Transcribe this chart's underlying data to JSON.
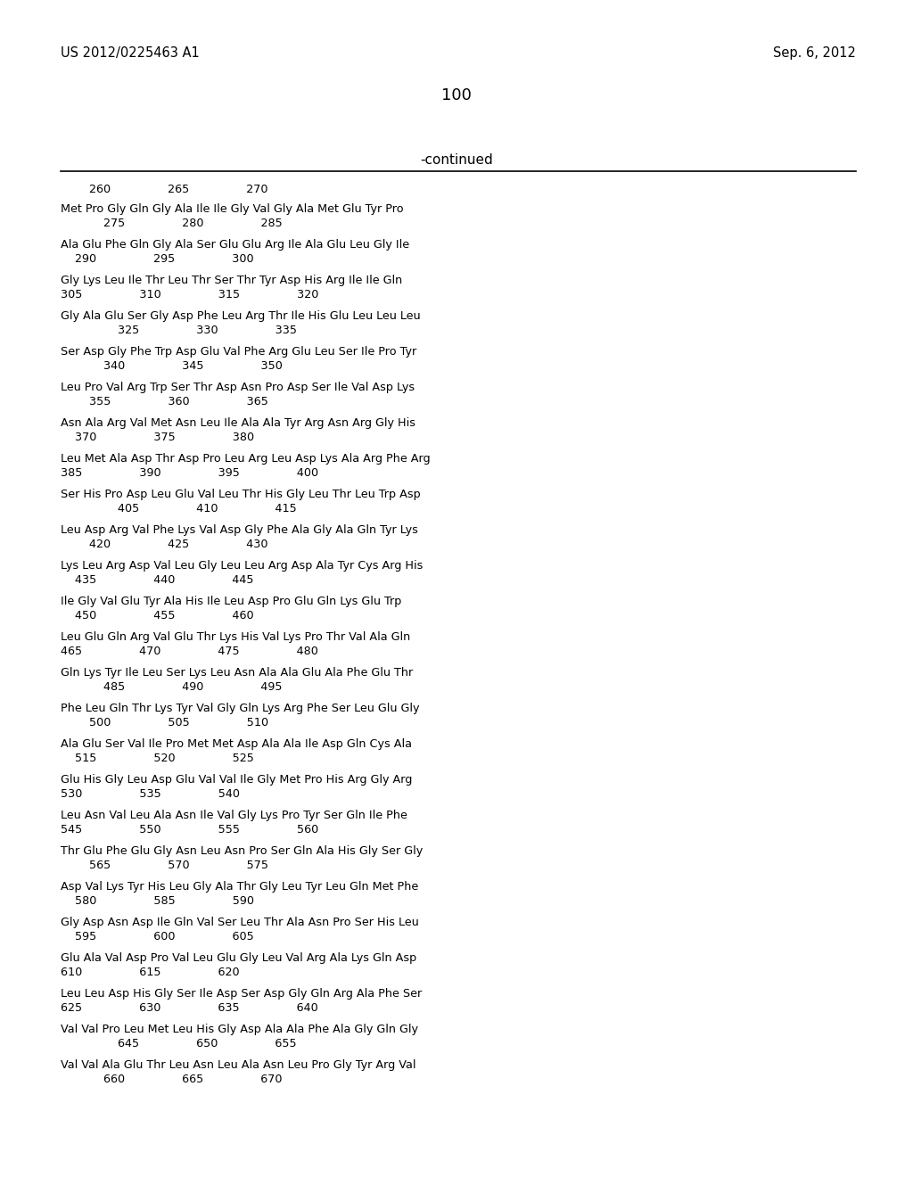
{
  "header_left": "US 2012/0225463 A1",
  "header_right": "Sep. 6, 2012",
  "page_number": "100",
  "continued_label": "-continued",
  "number_line": "        260                265                270",
  "sequence_blocks": [
    [
      "Met Pro Gly Gln Gly Ala Ile Ile Gly Val Gly Ala Met Glu Tyr Pro",
      "            275                280                285"
    ],
    [
      "Ala Glu Phe Gln Gly Ala Ser Glu Glu Arg Ile Ala Glu Leu Gly Ile",
      "    290                295                300"
    ],
    [
      "Gly Lys Leu Ile Thr Leu Thr Ser Thr Tyr Asp His Arg Ile Ile Gln",
      "305                310                315                320"
    ],
    [
      "Gly Ala Glu Ser Gly Asp Phe Leu Arg Thr Ile His Glu Leu Leu Leu",
      "                325                330                335"
    ],
    [
      "Ser Asp Gly Phe Trp Asp Glu Val Phe Arg Glu Leu Ser Ile Pro Tyr",
      "            340                345                350"
    ],
    [
      "Leu Pro Val Arg Trp Ser Thr Asp Asn Pro Asp Ser Ile Val Asp Lys",
      "        355                360                365"
    ],
    [
      "Asn Ala Arg Val Met Asn Leu Ile Ala Ala Tyr Arg Asn Arg Gly His",
      "    370                375                380"
    ],
    [
      "Leu Met Ala Asp Thr Asp Pro Leu Arg Leu Asp Lys Ala Arg Phe Arg",
      "385                390                395                400"
    ],
    [
      "Ser His Pro Asp Leu Glu Val Leu Thr His Gly Leu Thr Leu Trp Asp",
      "                405                410                415"
    ],
    [
      "Leu Asp Arg Val Phe Lys Val Asp Gly Phe Ala Gly Ala Gln Tyr Lys",
      "        420                425                430"
    ],
    [
      "Lys Leu Arg Asp Val Leu Gly Leu Leu Arg Asp Ala Tyr Cys Arg His",
      "    435                440                445"
    ],
    [
      "Ile Gly Val Glu Tyr Ala His Ile Leu Asp Pro Glu Gln Lys Glu Trp",
      "    450                455                460"
    ],
    [
      "Leu Glu Gln Arg Val Glu Thr Lys His Val Lys Pro Thr Val Ala Gln",
      "465                470                475                480"
    ],
    [
      "Gln Lys Tyr Ile Leu Ser Lys Leu Asn Ala Ala Glu Ala Phe Glu Thr",
      "            485                490                495"
    ],
    [
      "Phe Leu Gln Thr Lys Tyr Val Gly Gln Lys Arg Phe Ser Leu Glu Gly",
      "        500                505                510"
    ],
    [
      "Ala Glu Ser Val Ile Pro Met Met Asp Ala Ala Ile Asp Gln Cys Ala",
      "    515                520                525"
    ],
    [
      "Glu His Gly Leu Asp Glu Val Val Ile Gly Met Pro His Arg Gly Arg",
      "530                535                540"
    ],
    [
      "Leu Asn Val Leu Ala Asn Ile Val Gly Lys Pro Tyr Ser Gln Ile Phe",
      "545                550                555                560"
    ],
    [
      "Thr Glu Phe Glu Gly Asn Leu Asn Pro Ser Gln Ala His Gly Ser Gly",
      "        565                570                575"
    ],
    [
      "Asp Val Lys Tyr His Leu Gly Ala Thr Gly Leu Tyr Leu Gln Met Phe",
      "    580                585                590"
    ],
    [
      "Gly Asp Asn Asp Ile Gln Val Ser Leu Thr Ala Asn Pro Ser His Leu",
      "    595                600                605"
    ],
    [
      "Glu Ala Val Asp Pro Val Leu Glu Gly Leu Val Arg Ala Lys Gln Asp",
      "610                615                620"
    ],
    [
      "Leu Leu Asp His Gly Ser Ile Asp Ser Asp Gly Gln Arg Ala Phe Ser",
      "625                630                635                640"
    ],
    [
      "Val Val Pro Leu Met Leu His Gly Asp Ala Ala Phe Ala Gly Gln Gly",
      "                645                650                655"
    ],
    [
      "Val Val Ala Glu Thr Leu Asn Leu Ala Asn Leu Pro Gly Tyr Arg Val",
      "            660                665                670"
    ]
  ]
}
